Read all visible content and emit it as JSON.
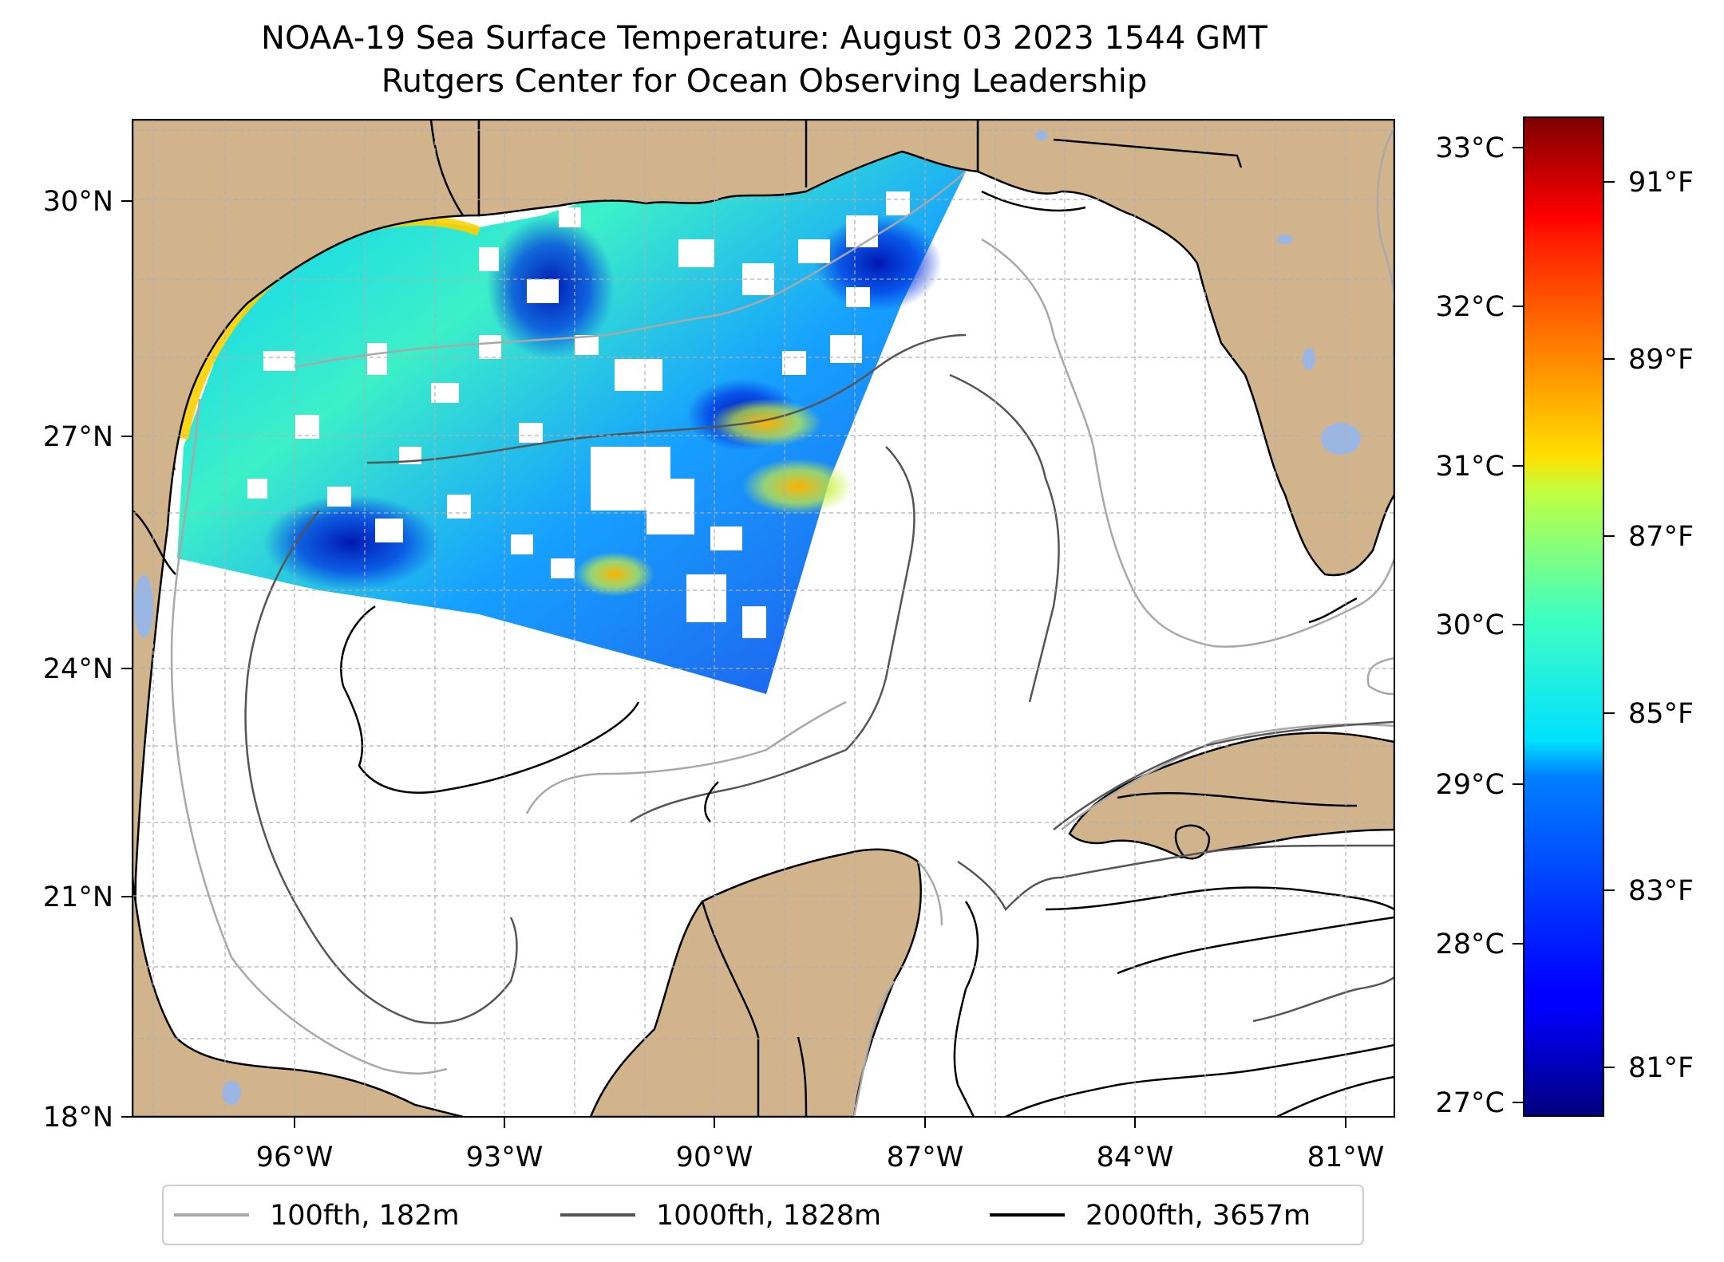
{
  "title": {
    "line1": "NOAA-19 Sea Surface Temperature: August 03 2023 1544 GMT",
    "line2": "Rutgers Center for Ocean Observing Leadership"
  },
  "map": {
    "lon_range": [
      -98.0,
      -80.0
    ],
    "lat_range": [
      18.0,
      31.0
    ],
    "lat_ticks": [
      {
        "v": 30,
        "label": "30°N"
      },
      {
        "v": 27,
        "label": "27°N"
      },
      {
        "v": 24,
        "label": "24°N"
      },
      {
        "v": 21,
        "label": "21°N"
      },
      {
        "v": 18,
        "label": "18°N"
      }
    ],
    "lon_ticks": [
      {
        "v": -96,
        "label": "96°W"
      },
      {
        "v": -93,
        "label": "93°W"
      },
      {
        "v": -90,
        "label": "90°W"
      },
      {
        "v": -87,
        "label": "87°W"
      },
      {
        "v": -84,
        "label": "84°W"
      },
      {
        "v": -81,
        "label": "81°W"
      }
    ],
    "grid": true,
    "land_color": "#d2b48c",
    "lake_color": "#9ab7e4"
  },
  "colorbar": {
    "colormap": "jet",
    "celsius_ticks": [
      "33°C",
      "32°C",
      "31°C",
      "30°C",
      "29°C",
      "28°C",
      "27°C"
    ],
    "fahrenheit_ticks": [
      "91°F",
      "89°F",
      "87°F",
      "85°F",
      "83°F",
      "81°F"
    ]
  },
  "legend": {
    "items": [
      {
        "label": "100fth, 182m",
        "color": "#a8a8a8"
      },
      {
        "label": "1000fth, 1828m",
        "color": "#555555"
      },
      {
        "label": "2000fth, 3657m",
        "color": "#000000"
      }
    ]
  }
}
